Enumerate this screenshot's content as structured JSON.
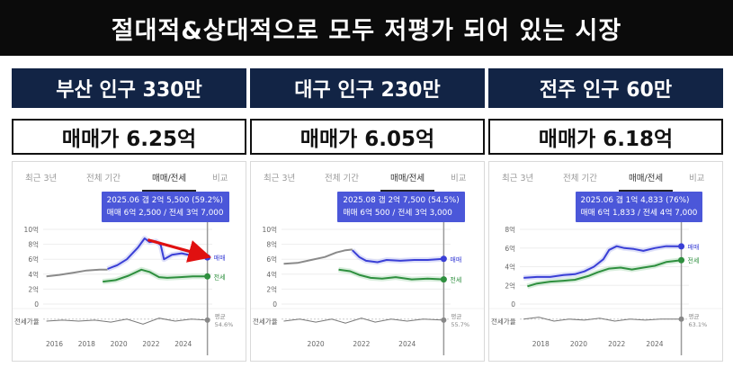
{
  "banner": {
    "title": "절대적&상대적으로 모두 저평가 되어 있는 시장"
  },
  "tabs": [
    "최근 3년",
    "전체 기간",
    "매매/전세",
    "비교"
  ],
  "labels": {
    "sale": "매매",
    "lease": "전세",
    "ratio_row": "전세가율",
    "average": "평균"
  },
  "colors": {
    "sale": "#3a3fd6",
    "lease": "#2e8f3e",
    "past": "#8a8a8a",
    "band": "#c9cdf5",
    "arrow": "#e01010",
    "navy": "#122445"
  },
  "panels": [
    {
      "city": "부산 인구 330만",
      "price": "매매가 6.25억",
      "tooltip": {
        "line1": "2025.06  갭 2억 5,500 (59.2%)",
        "line2": "매매 6억 2,500 / 전세 3억 7,000"
      },
      "avg_label": "54.6%",
      "chart_data": {
        "type": "line",
        "y_ticks": [
          "10억",
          "8억",
          "6억",
          "4억",
          "2억",
          "0"
        ],
        "ylim": [
          0,
          10
        ],
        "x_ticks": [
          {
            "label": "2016",
            "x": 2016
          },
          {
            "label": "2018",
            "x": 2018
          },
          {
            "label": "2020",
            "x": 2020
          },
          {
            "label": "2022",
            "x": 2022
          },
          {
            "label": "2024",
            "x": 2024
          }
        ],
        "xlim": [
          2015.3,
          2025.8
        ],
        "series": [
          {
            "key": "past_sale",
            "points": [
              [
                2015.5,
                3.7
              ],
              [
                2016.3,
                3.9
              ],
              [
                2017.2,
                4.2
              ],
              [
                2018.0,
                4.5
              ],
              [
                2018.8,
                4.6
              ],
              [
                2019.3,
                4.6
              ]
            ]
          },
          {
            "key": "sale",
            "points": [
              [
                2019.3,
                4.7
              ],
              [
                2019.9,
                5.2
              ],
              [
                2020.5,
                6.0
              ],
              [
                2021.2,
                7.6
              ],
              [
                2021.6,
                8.8
              ],
              [
                2021.9,
                8.3
              ],
              [
                2022.3,
                8.4
              ],
              [
                2022.6,
                7.9
              ],
              [
                2022.8,
                6.0
              ],
              [
                2023.3,
                6.6
              ],
              [
                2023.9,
                6.8
              ],
              [
                2024.5,
                6.5
              ],
              [
                2025.1,
                6.3
              ],
              [
                2025.5,
                6.25
              ]
            ]
          },
          {
            "key": "lease",
            "points": [
              [
                2019.0,
                3.0
              ],
              [
                2019.8,
                3.2
              ],
              [
                2020.6,
                3.8
              ],
              [
                2021.4,
                4.6
              ],
              [
                2021.9,
                4.3
              ],
              [
                2022.5,
                3.6
              ],
              [
                2023.0,
                3.5
              ],
              [
                2023.8,
                3.6
              ],
              [
                2024.6,
                3.7
              ],
              [
                2025.5,
                3.7
              ]
            ]
          }
        ],
        "ratio": {
          "points": [
            [
              2015.5,
              0.5
            ],
            [
              2016.5,
              0.55
            ],
            [
              2017.5,
              0.5
            ],
            [
              2018.5,
              0.55
            ],
            [
              2019.5,
              0.45
            ],
            [
              2020.5,
              0.6
            ],
            [
              2021.5,
              0.35
            ],
            [
              2022.5,
              0.65
            ],
            [
              2023.5,
              0.5
            ],
            [
              2024.5,
              0.6
            ],
            [
              2025.5,
              0.55
            ]
          ]
        },
        "cursor_x": 2025.5,
        "arrow": {
          "from": [
            2021.8,
            8.6
          ],
          "to": [
            2025.4,
            6.3
          ]
        }
      }
    },
    {
      "city": "대구 인구 230만",
      "price": "매매가 6.05억",
      "tooltip": {
        "line1": "2025.08  갭 2억 7,500 (54.5%)",
        "line2": "매매 6억 500 / 전세 3억 3,000"
      },
      "avg_label": "55.7%",
      "chart_data": {
        "type": "line",
        "y_ticks": [
          "10억",
          "8억",
          "6억",
          "4억",
          "2억",
          "0"
        ],
        "ylim": [
          0,
          10
        ],
        "x_ticks": [
          {
            "label": "2020",
            "x": 2020
          },
          {
            "label": "2022",
            "x": 2022
          },
          {
            "label": "2024",
            "x": 2024
          }
        ],
        "xlim": [
          2018.5,
          2025.9
        ],
        "series": [
          {
            "key": "past_sale",
            "points": [
              [
                2018.6,
                5.4
              ],
              [
                2019.2,
                5.5
              ],
              [
                2019.8,
                5.9
              ],
              [
                2020.4,
                6.3
              ],
              [
                2020.9,
                6.9
              ],
              [
                2021.3,
                7.2
              ],
              [
                2021.6,
                7.3
              ]
            ]
          },
          {
            "key": "sale",
            "points": [
              [
                2021.6,
                7.2
              ],
              [
                2021.9,
                6.3
              ],
              [
                2022.2,
                5.8
              ],
              [
                2022.7,
                5.6
              ],
              [
                2023.1,
                5.9
              ],
              [
                2023.7,
                5.8
              ],
              [
                2024.3,
                5.9
              ],
              [
                2024.9,
                5.9
              ],
              [
                2025.6,
                6.05
              ]
            ]
          },
          {
            "key": "lease",
            "points": [
              [
                2021.0,
                4.6
              ],
              [
                2021.5,
                4.4
              ],
              [
                2021.9,
                3.9
              ],
              [
                2022.4,
                3.5
              ],
              [
                2022.9,
                3.4
              ],
              [
                2023.5,
                3.6
              ],
              [
                2024.2,
                3.3
              ],
              [
                2024.9,
                3.4
              ],
              [
                2025.6,
                3.3
              ]
            ]
          }
        ],
        "ratio": {
          "points": [
            [
              2018.6,
              0.5
            ],
            [
              2019.3,
              0.6
            ],
            [
              2020.0,
              0.45
            ],
            [
              2020.7,
              0.6
            ],
            [
              2021.3,
              0.4
            ],
            [
              2022.0,
              0.65
            ],
            [
              2022.6,
              0.45
            ],
            [
              2023.3,
              0.6
            ],
            [
              2024.0,
              0.5
            ],
            [
              2024.7,
              0.6
            ],
            [
              2025.6,
              0.55
            ]
          ]
        },
        "cursor_x": 2025.6
      }
    },
    {
      "city": "전주 인구 60만",
      "price": "매매가 6.18억",
      "tooltip": {
        "line1": "2025.06  갭 1억 4,833 (76%)",
        "line2": "매매 6억 1,833 / 전세 4억 7,000"
      },
      "avg_label": "63.1%",
      "chart_data": {
        "type": "line",
        "y_ticks": [
          "8억",
          "6억",
          "4억",
          "2억",
          "0"
        ],
        "ylim": [
          0,
          8
        ],
        "x_ticks": [
          {
            "label": "2018",
            "x": 2018
          },
          {
            "label": "2020",
            "x": 2020
          },
          {
            "label": "2022",
            "x": 2022
          },
          {
            "label": "2024",
            "x": 2024
          }
        ],
        "xlim": [
          2016.9,
          2025.8
        ],
        "series": [
          {
            "key": "sale",
            "points": [
              [
                2017.1,
                2.8
              ],
              [
                2017.8,
                2.9
              ],
              [
                2018.5,
                2.9
              ],
              [
                2019.2,
                3.1
              ],
              [
                2019.8,
                3.2
              ],
              [
                2020.3,
                3.5
              ],
              [
                2020.8,
                4.0
              ],
              [
                2021.3,
                4.8
              ],
              [
                2021.6,
                5.8
              ],
              [
                2022.0,
                6.2
              ],
              [
                2022.4,
                6.0
              ],
              [
                2022.9,
                5.9
              ],
              [
                2023.4,
                5.7
              ],
              [
                2024.0,
                6.0
              ],
              [
                2024.6,
                6.2
              ],
              [
                2025.4,
                6.18
              ]
            ]
          },
          {
            "key": "lease",
            "points": [
              [
                2017.3,
                1.9
              ],
              [
                2017.8,
                2.2
              ],
              [
                2018.5,
                2.4
              ],
              [
                2019.2,
                2.5
              ],
              [
                2019.8,
                2.6
              ],
              [
                2020.5,
                3.0
              ],
              [
                2021.0,
                3.4
              ],
              [
                2021.6,
                3.8
              ],
              [
                2022.2,
                3.9
              ],
              [
                2022.8,
                3.7
              ],
              [
                2023.4,
                3.9
              ],
              [
                2024.0,
                4.1
              ],
              [
                2024.6,
                4.5
              ],
              [
                2025.4,
                4.7
              ]
            ]
          }
        ],
        "ratio": {
          "points": [
            [
              2017.1,
              0.6
            ],
            [
              2017.9,
              0.7
            ],
            [
              2018.7,
              0.5
            ],
            [
              2019.5,
              0.6
            ],
            [
              2020.3,
              0.55
            ],
            [
              2021.1,
              0.65
            ],
            [
              2021.9,
              0.5
            ],
            [
              2022.7,
              0.6
            ],
            [
              2023.5,
              0.55
            ],
            [
              2024.3,
              0.6
            ],
            [
              2025.4,
              0.6
            ]
          ]
        },
        "cursor_x": 2025.4
      }
    }
  ]
}
